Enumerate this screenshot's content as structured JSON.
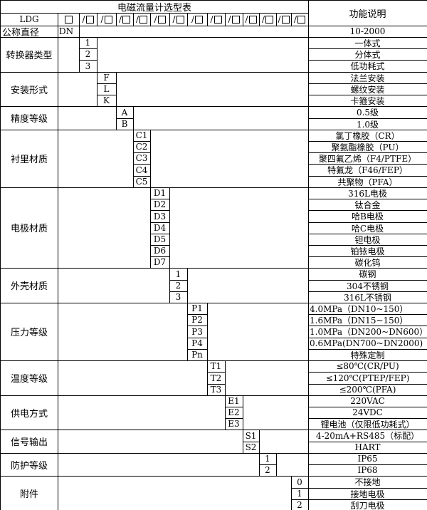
{
  "title": "电磁流量计选型表",
  "function_header": "功能说明",
  "model_prefix": "LDG",
  "slot_symbol": "□",
  "slot_separator": "/",
  "nominal": {
    "label": "公称直径",
    "code": "DN",
    "desc": "10-2000"
  },
  "groups": [
    {
      "label": "转换器类型",
      "options": [
        {
          "code": "1",
          "desc": "一体式"
        },
        {
          "code": "2",
          "desc": "分体式"
        },
        {
          "code": "3",
          "desc": "低功耗式"
        }
      ]
    },
    {
      "label": "安装形式",
      "options": [
        {
          "code": "F",
          "desc": "法兰安装"
        },
        {
          "code": "L",
          "desc": "螺纹安装"
        },
        {
          "code": "K",
          "desc": "卡箍安装"
        }
      ]
    },
    {
      "label": "精度等级",
      "options": [
        {
          "code": "A",
          "desc": "0.5级"
        },
        {
          "code": "B",
          "desc": "1.0级"
        }
      ]
    },
    {
      "label": "衬里材质",
      "options": [
        {
          "code": "C1",
          "desc": "氯丁橡胶（CR）"
        },
        {
          "code": "C2",
          "desc": "聚氨酯橡胶（PU）"
        },
        {
          "code": "C3",
          "desc": "聚四氟乙烯（F4/PTFE）"
        },
        {
          "code": "C4",
          "desc": "特氟龙（F46/FEP）"
        },
        {
          "code": "C5",
          "desc": "共聚物（PFA）"
        }
      ]
    },
    {
      "label": "电极材质",
      "options": [
        {
          "code": "D1",
          "desc": "316L电极"
        },
        {
          "code": "D2",
          "desc": "钛合金"
        },
        {
          "code": "D3",
          "desc": "哈B电极"
        },
        {
          "code": "D4",
          "desc": "哈C电极"
        },
        {
          "code": "D5",
          "desc": "钽电极"
        },
        {
          "code": "D6",
          "desc": "铂铱电极"
        },
        {
          "code": "D7",
          "desc": "碳化钨"
        }
      ]
    },
    {
      "label": "外壳材质",
      "options": [
        {
          "code": "1",
          "desc": "碳钢"
        },
        {
          "code": "2",
          "desc": "304不锈钢"
        },
        {
          "code": "3",
          "desc": "316L不锈钢"
        }
      ]
    },
    {
      "label": "压力等级",
      "options": [
        {
          "code": "P1",
          "desc": "4.0MPa（DN10~150）",
          "left": true
        },
        {
          "code": "P2",
          "desc": "1.6MPa（DN15~150）",
          "left": true
        },
        {
          "code": "P3",
          "desc": "1.0MPa（DN200~DN600）",
          "left": true
        },
        {
          "code": "P4",
          "desc": "0.6MPa(DN700~DN2000)",
          "left": true
        },
        {
          "code": "Pn",
          "desc": "特殊定制"
        }
      ]
    },
    {
      "label": "温度等级",
      "options": [
        {
          "code": "T1",
          "desc": "≤80℃(CR/PU)"
        },
        {
          "code": "T2",
          "desc": "≤120℃(PTEP/FEP)"
        },
        {
          "code": "T3",
          "desc": "≤200℃(PFA)"
        }
      ]
    },
    {
      "label": "供电方式",
      "options": [
        {
          "code": "E1",
          "desc": "220VAC"
        },
        {
          "code": "E2",
          "desc": "24VDC"
        },
        {
          "code": "E3",
          "desc": "锂电池（仅限低功耗式）"
        }
      ]
    },
    {
      "label": "信号输出",
      "options": [
        {
          "code": "S1",
          "desc": "4-20mA+RS485（标配）"
        },
        {
          "code": "S2",
          "desc": "HART"
        }
      ]
    },
    {
      "label": "防护等级",
      "options": [
        {
          "code": "1",
          "desc": "IP65"
        },
        {
          "code": "2",
          "desc": "IP68"
        }
      ]
    },
    {
      "label": "附件",
      "options": [
        {
          "code": "0",
          "desc": "不接地"
        },
        {
          "code": "1",
          "desc": "接地电极"
        },
        {
          "code": "2",
          "desc": "刮刀电极"
        }
      ]
    }
  ]
}
